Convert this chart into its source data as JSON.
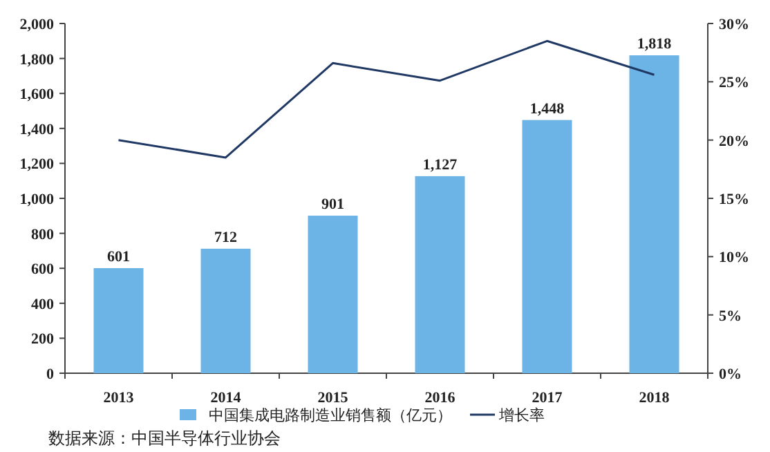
{
  "chart_data": {
    "type": "bar",
    "categories": [
      "2013",
      "2014",
      "2015",
      "2016",
      "2017",
      "2018"
    ],
    "series": [
      {
        "name": "中国集成电路制造业销售额（亿元）",
        "color": "#6cb4e6",
        "values": [
          601,
          712,
          901,
          1127,
          1448,
          1818
        ],
        "value_labels": [
          "601",
          "712",
          "901",
          "1,127",
          "1,448",
          "1,818"
        ]
      },
      {
        "name": "增长率",
        "type": "line",
        "axis": "y2",
        "color": "#1f3864",
        "values": [
          20.0,
          18.5,
          26.6,
          25.1,
          28.5,
          25.6
        ]
      }
    ],
    "ylim": [
      0,
      2000
    ],
    "yticks": [
      0,
      200,
      400,
      600,
      800,
      {
        "value": 1000,
        "label": "1,000"
      },
      {
        "value": 1200,
        "label": "1,200"
      },
      {
        "value": 1400,
        "label": "1,400"
      },
      {
        "value": 1600,
        "label": "1,600"
      },
      {
        "value": 1800,
        "label": "1,800"
      },
      {
        "value": 2000,
        "label": "2,000"
      }
    ],
    "y2lim": [
      0,
      30
    ],
    "y2ticks": [
      {
        "value": 0,
        "label": "0%"
      },
      {
        "value": 5,
        "label": "5%"
      },
      {
        "value": 10,
        "label": "10%"
      },
      {
        "value": 15,
        "label": "15%"
      },
      {
        "value": 20,
        "label": "20%"
      },
      {
        "value": 25,
        "label": "25%"
      },
      {
        "value": 30,
        "label": "30%"
      }
    ],
    "grid": false,
    "legend": "bottom",
    "marker": "none",
    "annotations": [
      "数据来源：中国半导体行业协会"
    ]
  }
}
